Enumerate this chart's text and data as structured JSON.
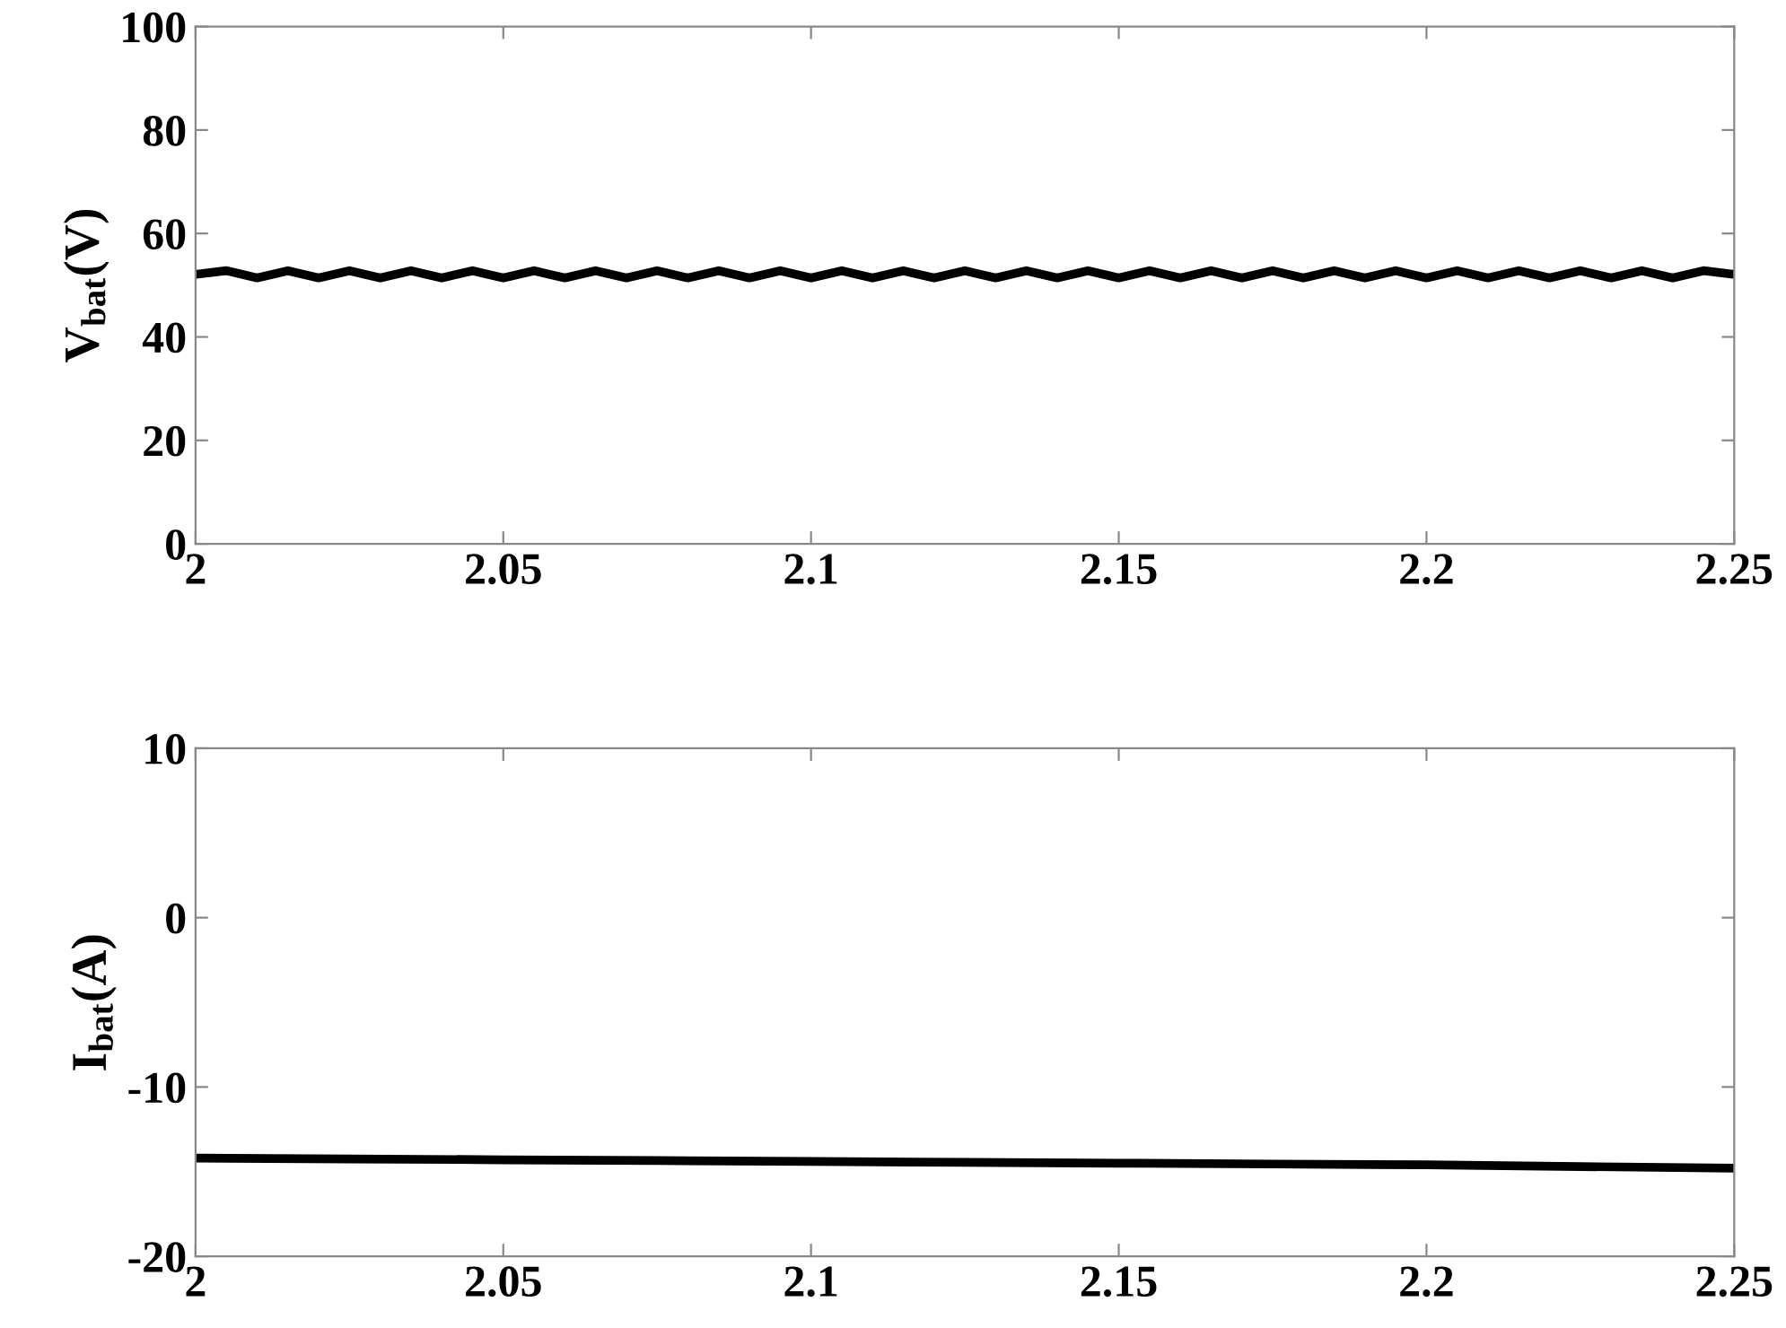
{
  "chart_data": [
    {
      "type": "line",
      "ylabel": "V$_{bat}$(V)",
      "xlim": [
        2,
        2.25
      ],
      "xticks": [
        2,
        2.05,
        2.1,
        2.15,
        2.2,
        2.25
      ],
      "ylim": [
        0,
        100
      ],
      "yticks": [
        0,
        20,
        40,
        60,
        80,
        100
      ],
      "grid": false,
      "marker": "none",
      "line_style": "solid",
      "x": [
        2,
        2.005,
        2.01,
        2.015,
        2.02,
        2.025,
        2.03,
        2.035,
        2.04,
        2.045,
        2.05,
        2.055,
        2.06,
        2.065,
        2.07,
        2.075,
        2.08,
        2.085,
        2.09,
        2.095,
        2.1,
        2.105,
        2.11,
        2.115,
        2.12,
        2.125,
        2.13,
        2.135,
        2.14,
        2.145,
        2.15,
        2.155,
        2.16,
        2.165,
        2.17,
        2.175,
        2.18,
        2.185,
        2.19,
        2.195,
        2.2,
        2.205,
        2.21,
        2.215,
        2.22,
        2.225,
        2.23,
        2.235,
        2.24,
        2.245,
        2.25
      ],
      "series": [
        {
          "color": "#000000",
          "values": [
            52.1,
            52.8,
            51.4,
            52.8,
            51.4,
            52.8,
            51.4,
            52.8,
            51.4,
            52.8,
            51.4,
            52.8,
            51.4,
            52.8,
            51.4,
            52.8,
            51.4,
            52.8,
            51.4,
            52.8,
            51.4,
            52.8,
            51.4,
            52.8,
            51.4,
            52.8,
            51.4,
            52.8,
            51.4,
            52.8,
            51.4,
            52.8,
            51.4,
            52.8,
            51.4,
            52.8,
            51.4,
            52.8,
            51.4,
            52.8,
            51.4,
            52.8,
            51.4,
            52.8,
            51.4,
            52.8,
            51.4,
            52.8,
            51.4,
            52.8,
            52.1
          ]
        }
      ]
    },
    {
      "type": "line",
      "ylabel": "I$_{bat}$(A)",
      "xlim": [
        2,
        2.25
      ],
      "xticks": [
        2,
        2.05,
        2.1,
        2.15,
        2.2,
        2.25
      ],
      "ylim": [
        -20,
        10
      ],
      "yticks": [
        -20,
        -10,
        0,
        10
      ],
      "grid": false,
      "marker": "none",
      "line_style": "solid",
      "x": [
        2,
        2.025,
        2.05,
        2.075,
        2.1,
        2.125,
        2.15,
        2.175,
        2.2,
        2.225,
        2.25
      ],
      "series": [
        {
          "color": "#000000",
          "values": [
            -14.2,
            -14.25,
            -14.3,
            -14.35,
            -14.4,
            -14.45,
            -14.5,
            -14.55,
            -14.6,
            -14.7,
            -14.8
          ]
        }
      ]
    }
  ]
}
